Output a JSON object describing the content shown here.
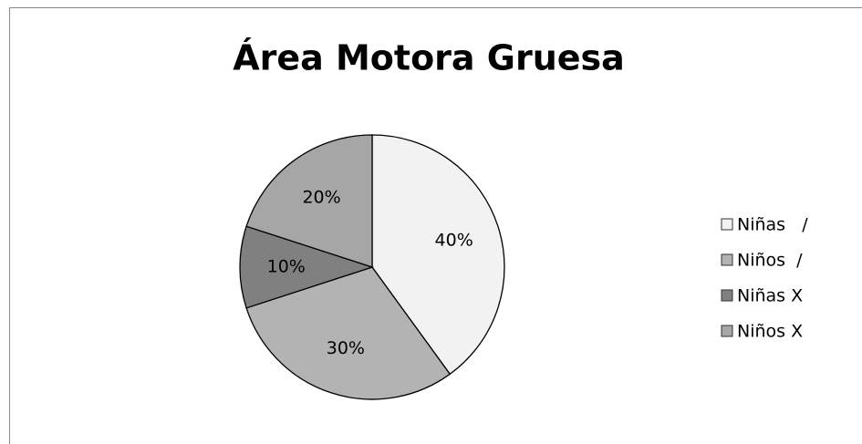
{
  "chart_data": {
    "type": "pie",
    "title": "Área Motora Gruesa",
    "categories": [
      "Niñas   /",
      "Niños  /",
      "Niñas X",
      "Niños X"
    ],
    "values": [
      40,
      30,
      10,
      20
    ],
    "value_labels": [
      "40%",
      "30%",
      "10%",
      "20%"
    ],
    "colors": [
      "#f2f2f2",
      "#b3b3b3",
      "#808080",
      "#a6a6a6"
    ],
    "legend": "right"
  }
}
